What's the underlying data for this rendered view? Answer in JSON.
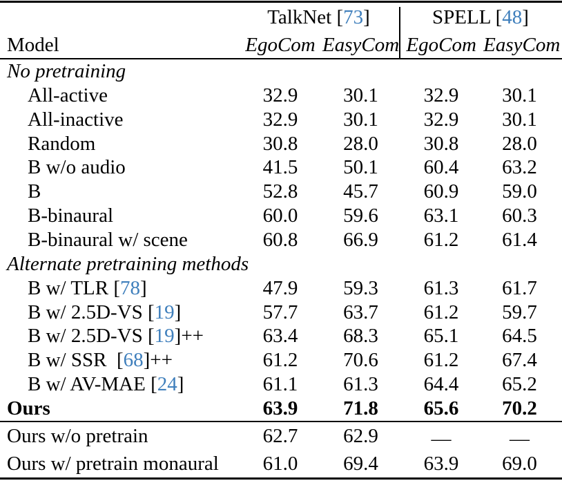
{
  "colors": {
    "citation_blue": "#3f7fbc",
    "text": "#000000",
    "background": "#ffffff",
    "rule": "#000000"
  },
  "table": {
    "header": {
      "model_label": "Model",
      "groups": [
        {
          "label_pre": "TalkNet [",
          "cite": "73",
          "label_post": "]"
        },
        {
          "label_pre": "SPELL [",
          "cite": "48",
          "label_post": "]"
        }
      ],
      "sub_headers": [
        "EgoCom",
        "EasyCom",
        "EgoCom",
        "EasyCom"
      ]
    },
    "rows": [
      {
        "type": "section",
        "label_pre": "No pretraining"
      },
      {
        "type": "data",
        "indent": true,
        "label_pre": "All-active",
        "values": [
          "32.9",
          "30.1",
          "32.9",
          "30.1"
        ]
      },
      {
        "type": "data",
        "indent": true,
        "label_pre": "All-inactive",
        "values": [
          "32.9",
          "30.1",
          "32.9",
          "30.1"
        ]
      },
      {
        "type": "data",
        "indent": true,
        "label_pre": "Random",
        "values": [
          "30.8",
          "28.0",
          "30.8",
          "28.0"
        ]
      },
      {
        "type": "data",
        "indent": true,
        "label_pre": "B w/o audio",
        "values": [
          "41.5",
          "50.1",
          "60.4",
          "63.2"
        ]
      },
      {
        "type": "data",
        "indent": true,
        "label_pre": "B",
        "values": [
          "52.8",
          "45.7",
          "60.9",
          "59.0"
        ]
      },
      {
        "type": "data",
        "indent": true,
        "label_pre": "B-binaural",
        "values": [
          "60.0",
          "59.6",
          "63.1",
          "60.3"
        ]
      },
      {
        "type": "data",
        "indent": true,
        "label_pre": "B-binaural w/ scene",
        "values": [
          "60.8",
          "66.9",
          "61.2",
          "61.4"
        ]
      },
      {
        "type": "section",
        "label_pre": "Alternate pretraining methods"
      },
      {
        "type": "data",
        "indent": true,
        "label_pre": "B w/ TLR [",
        "cite": "78",
        "label_post": "]",
        "values": [
          "47.9",
          "59.3",
          "61.3",
          "61.7"
        ]
      },
      {
        "type": "data",
        "indent": true,
        "label_pre": "B w/ 2.5D-VS [",
        "cite": "19",
        "label_post": "]",
        "values": [
          "57.7",
          "63.7",
          "61.2",
          "59.7"
        ]
      },
      {
        "type": "data",
        "indent": true,
        "label_pre": "B w/ 2.5D-VS [",
        "cite": "19",
        "label_post": "]++",
        "values": [
          "63.4",
          "68.3",
          "65.1",
          "64.5"
        ]
      },
      {
        "type": "data",
        "indent": true,
        "label_pre": "B w/ SSR  [",
        "cite": "68",
        "label_post": "]++",
        "values": [
          "61.2",
          "70.6",
          "61.2",
          "67.4"
        ]
      },
      {
        "type": "data",
        "indent": true,
        "label_pre": "B w/ AV-MAE [",
        "cite": "24",
        "label_post": "]",
        "values": [
          "61.1",
          "61.3",
          "64.4",
          "65.2"
        ]
      },
      {
        "type": "data",
        "bold": true,
        "label_pre": "Ours",
        "values": [
          "63.9",
          "71.8",
          "65.6",
          "70.2"
        ]
      }
    ],
    "footer_rows": [
      {
        "type": "data",
        "label_pre": "Ours w/o pretrain",
        "values": [
          "62.7",
          "62.9",
          "—",
          "—"
        ]
      },
      {
        "type": "data",
        "label_pre": "Ours w/ pretrain monaural",
        "values": [
          "61.0",
          "69.4",
          "63.9",
          "69.0"
        ]
      }
    ]
  }
}
